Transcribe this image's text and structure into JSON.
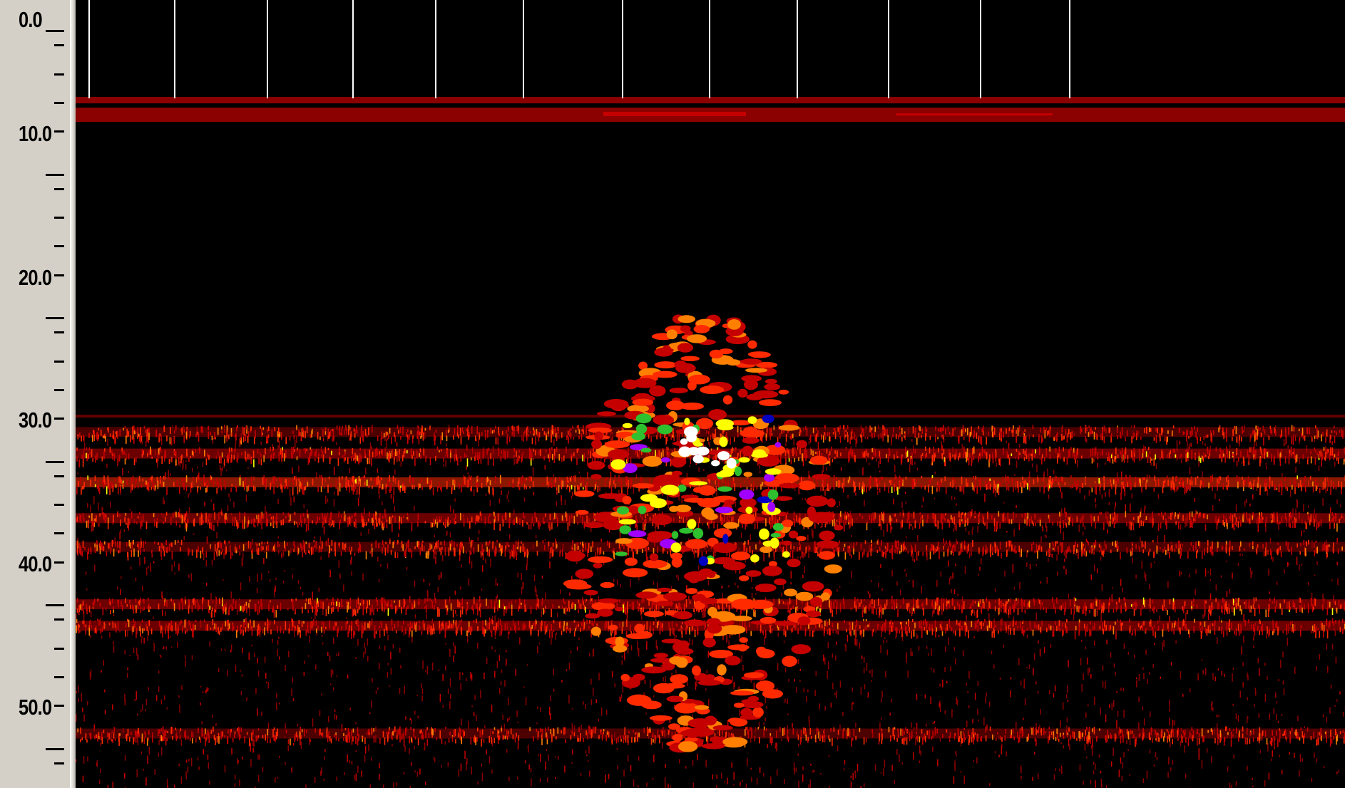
{
  "depth_axis": {
    "labels": [
      "0.0",
      "10.0",
      "20.0",
      "30.0",
      "40.0",
      "50.0"
    ],
    "range": [
      0,
      54
    ],
    "minor_step": 2
  },
  "echogram": {
    "palette": [
      "#000000",
      "#5a0000",
      "#8b0000",
      "#c40000",
      "#ff2a00",
      "#ff8000",
      "#ffff00",
      "#2ec02e",
      "#0000c0",
      "#a000ff",
      "#ffffff"
    ],
    "ping_markers": 12,
    "surface_depth": 7,
    "bottom_depth": 27.5,
    "layer_depths": [
      29,
      30.5,
      32.5,
      35,
      37,
      41,
      42.5,
      50
    ],
    "school_center_depth": 33,
    "school_top_depth": 21
  }
}
